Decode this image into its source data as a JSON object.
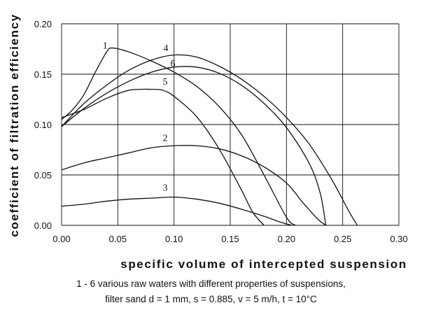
{
  "chart_data": {
    "type": "line",
    "xlabel": "specific volume of intercepted suspension",
    "ylabel": "coefficient of filtration efficiency",
    "xlim": [
      0.0,
      0.3
    ],
    "ylim": [
      0.0,
      0.2
    ],
    "x_ticks": [
      "0.00",
      "0.05",
      "0.10",
      "0.15",
      "0.20",
      "0.25",
      "0.30"
    ],
    "y_ticks": [
      "0.00",
      "0.05",
      "0.10",
      "0.15",
      "0.20"
    ],
    "grid": true,
    "series": [
      {
        "name": "1",
        "points": [
          [
            0.0,
            0.105
          ],
          [
            0.01,
            0.115
          ],
          [
            0.02,
            0.13
          ],
          [
            0.03,
            0.152
          ],
          [
            0.04,
            0.172
          ],
          [
            0.045,
            0.176
          ],
          [
            0.06,
            0.172
          ],
          [
            0.08,
            0.163
          ],
          [
            0.1,
            0.152
          ],
          [
            0.12,
            0.138
          ],
          [
            0.14,
            0.118
          ],
          [
            0.16,
            0.09
          ],
          [
            0.18,
            0.05
          ],
          [
            0.2,
            0.008
          ],
          [
            0.208,
            0.0
          ]
        ]
      },
      {
        "name": "2",
        "points": [
          [
            0.0,
            0.055
          ],
          [
            0.02,
            0.062
          ],
          [
            0.04,
            0.067
          ],
          [
            0.06,
            0.072
          ],
          [
            0.08,
            0.077
          ],
          [
            0.1,
            0.079
          ],
          [
            0.12,
            0.079
          ],
          [
            0.14,
            0.076
          ],
          [
            0.16,
            0.069
          ],
          [
            0.18,
            0.058
          ],
          [
            0.2,
            0.042
          ],
          [
            0.215,
            0.022
          ],
          [
            0.228,
            0.006
          ],
          [
            0.235,
            0.0
          ]
        ]
      },
      {
        "name": "3",
        "points": [
          [
            0.0,
            0.019
          ],
          [
            0.02,
            0.021
          ],
          [
            0.04,
            0.024
          ],
          [
            0.06,
            0.026
          ],
          [
            0.08,
            0.027
          ],
          [
            0.1,
            0.028
          ],
          [
            0.12,
            0.026
          ],
          [
            0.14,
            0.022
          ],
          [
            0.16,
            0.016
          ],
          [
            0.18,
            0.009
          ],
          [
            0.195,
            0.003
          ],
          [
            0.205,
            0.0
          ]
        ]
      },
      {
        "name": "4",
        "points": [
          [
            0.0,
            0.098
          ],
          [
            0.02,
            0.121
          ],
          [
            0.04,
            0.139
          ],
          [
            0.06,
            0.154
          ],
          [
            0.08,
            0.164
          ],
          [
            0.1,
            0.169
          ],
          [
            0.12,
            0.167
          ],
          [
            0.14,
            0.158
          ],
          [
            0.16,
            0.145
          ],
          [
            0.18,
            0.128
          ],
          [
            0.2,
            0.107
          ],
          [
            0.22,
            0.081
          ],
          [
            0.24,
            0.046
          ],
          [
            0.255,
            0.015
          ],
          [
            0.263,
            0.0
          ]
        ]
      },
      {
        "name": "5",
        "points": [
          [
            0.0,
            0.107
          ],
          [
            0.02,
            0.115
          ],
          [
            0.04,
            0.126
          ],
          [
            0.06,
            0.134
          ],
          [
            0.08,
            0.135
          ],
          [
            0.09,
            0.134
          ],
          [
            0.1,
            0.128
          ],
          [
            0.12,
            0.108
          ],
          [
            0.14,
            0.076
          ],
          [
            0.16,
            0.035
          ],
          [
            0.17,
            0.013
          ],
          [
            0.18,
            0.0
          ]
        ]
      },
      {
        "name": "6",
        "points": [
          [
            0.0,
            0.098
          ],
          [
            0.02,
            0.116
          ],
          [
            0.04,
            0.131
          ],
          [
            0.06,
            0.143
          ],
          [
            0.08,
            0.152
          ],
          [
            0.1,
            0.157
          ],
          [
            0.12,
            0.157
          ],
          [
            0.14,
            0.151
          ],
          [
            0.16,
            0.139
          ],
          [
            0.18,
            0.121
          ],
          [
            0.2,
            0.097
          ],
          [
            0.22,
            0.062
          ],
          [
            0.23,
            0.032
          ],
          [
            0.235,
            0.0
          ]
        ]
      }
    ]
  },
  "caption": {
    "line1": "1 - 6 various raw waters with different properties of suspensions,",
    "line2": "filter sand d = 1 mm, s = 0.885, v = 5 m/h, t = 10°C"
  },
  "colors": {
    "line": "#111111",
    "grid": "#111111"
  }
}
